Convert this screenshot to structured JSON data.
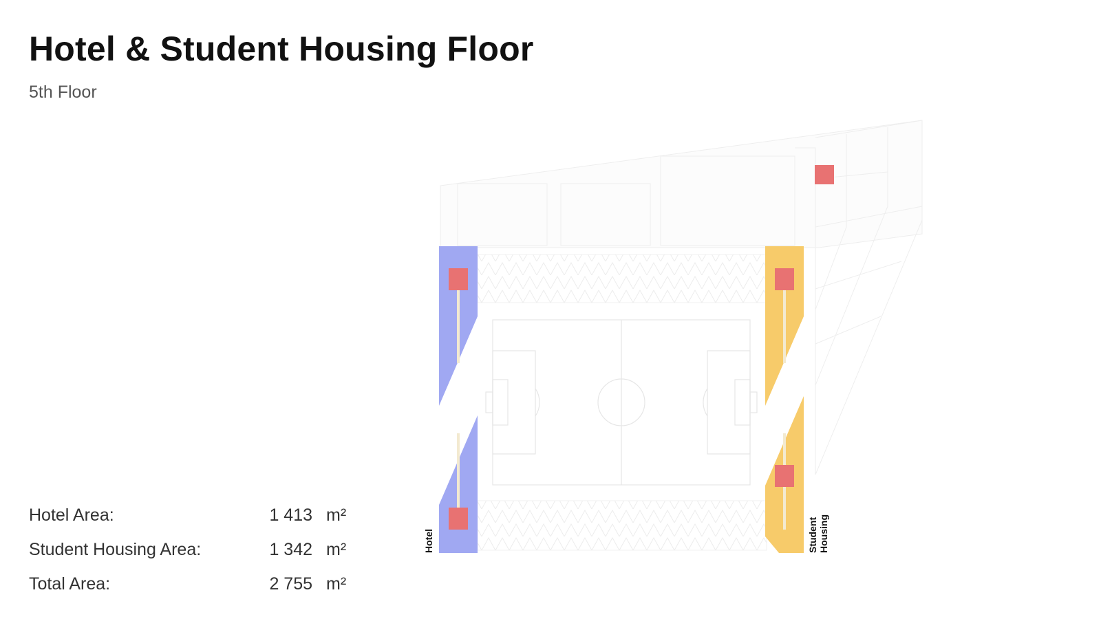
{
  "header": {
    "title": "Hotel & Student Housing Floor",
    "subtitle": "5th Floor"
  },
  "stats": [
    {
      "label": "Hotel Area:",
      "value": "1 413",
      "unit": "m²"
    },
    {
      "label": "Student Housing Area:",
      "value": "1 342",
      "unit": "m²"
    },
    {
      "label": "Total Area:",
      "value": "2 755",
      "unit": "m²"
    }
  ],
  "plan": {
    "hotel_label": "Hotel",
    "student_label_line1": "Student",
    "student_label_line2": "Housing",
    "colors": {
      "hotel": "#a0a8f2",
      "student_housing": "#f7cb6a",
      "core": "#e87272",
      "corridor": "#f3ead0",
      "outline": "#e6e6e6"
    }
  }
}
